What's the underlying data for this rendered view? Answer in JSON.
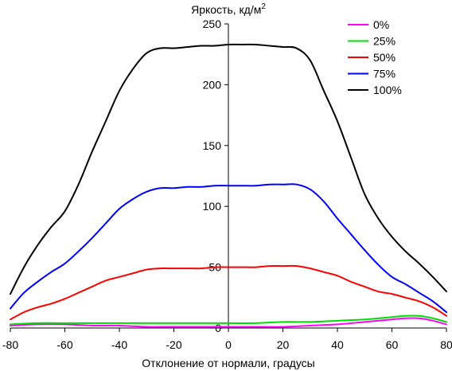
{
  "chart_data": {
    "type": "line",
    "title": "Яркость, кд/м²",
    "xlabel": "Отклонение от нормали, градусы",
    "ylabel": "",
    "xlim": [
      -80,
      80
    ],
    "ylim": [
      0,
      250
    ],
    "xticks": [
      -80,
      -60,
      -40,
      -20,
      0,
      20,
      40,
      60,
      80
    ],
    "yticks": [
      0,
      50,
      100,
      150,
      200,
      250
    ],
    "grid": false,
    "legend_position": "top-right",
    "series": [
      {
        "name": "0%",
        "color": "#ff00ff",
        "x": [
          -80,
          -70,
          -60,
          -50,
          -40,
          -30,
          -20,
          -10,
          0,
          10,
          20,
          30,
          40,
          50,
          60,
          65,
          70,
          75,
          80
        ],
        "y": [
          2,
          3,
          3,
          2,
          2,
          1,
          1,
          1,
          1,
          1,
          1,
          2,
          3,
          5,
          7,
          8,
          8,
          6,
          3
        ]
      },
      {
        "name": "25%",
        "color": "#00dd00",
        "x": [
          -80,
          -70,
          -60,
          -50,
          -40,
          -30,
          -20,
          -10,
          0,
          10,
          20,
          30,
          40,
          50,
          60,
          65,
          70,
          75,
          80
        ],
        "y": [
          3,
          4,
          4,
          4,
          4,
          4,
          4,
          4,
          4,
          4,
          5,
          5,
          6,
          7,
          9,
          10,
          10,
          8,
          5
        ]
      },
      {
        "name": "50%",
        "color": "#ff0000",
        "x": [
          -80,
          -75,
          -70,
          -65,
          -60,
          -55,
          -50,
          -45,
          -40,
          -35,
          -30,
          -25,
          -20,
          -15,
          -10,
          -5,
          0,
          5,
          10,
          15,
          20,
          25,
          30,
          35,
          40,
          45,
          50,
          55,
          60,
          65,
          70,
          75,
          80
        ],
        "y": [
          7,
          13,
          17,
          20,
          24,
          29,
          34,
          39,
          42,
          45,
          48,
          49,
          49,
          49,
          49,
          50,
          50,
          50,
          50,
          51,
          51,
          51,
          49,
          46,
          43,
          38,
          34,
          30,
          28,
          25,
          22,
          17,
          10
        ]
      },
      {
        "name": "75%",
        "color": "#0000ff",
        "x": [
          -80,
          -75,
          -70,
          -65,
          -60,
          -55,
          -50,
          -45,
          -40,
          -35,
          -30,
          -25,
          -20,
          -15,
          -10,
          -5,
          0,
          5,
          10,
          15,
          20,
          25,
          30,
          35,
          40,
          45,
          50,
          55,
          60,
          65,
          70,
          75,
          80
        ],
        "y": [
          16,
          29,
          38,
          46,
          53,
          63,
          74,
          86,
          98,
          106,
          112,
          115,
          115,
          116,
          116,
          117,
          117,
          117,
          117,
          118,
          118,
          118,
          114,
          104,
          90,
          77,
          64,
          52,
          42,
          36,
          29,
          22,
          13
        ]
      },
      {
        "name": "100%",
        "color": "#000000",
        "x": [
          -80,
          -75,
          -70,
          -65,
          -60,
          -55,
          -50,
          -45,
          -40,
          -35,
          -30,
          -25,
          -20,
          -15,
          -10,
          -5,
          0,
          5,
          10,
          15,
          20,
          25,
          30,
          35,
          40,
          45,
          50,
          55,
          60,
          65,
          70,
          75,
          80
        ],
        "y": [
          28,
          50,
          68,
          83,
          96,
          118,
          145,
          170,
          195,
          213,
          226,
          230,
          230,
          231,
          232,
          232,
          233,
          233,
          233,
          232,
          231,
          230,
          220,
          195,
          170,
          140,
          110,
          90,
          75,
          63,
          53,
          42,
          30
        ]
      }
    ]
  }
}
